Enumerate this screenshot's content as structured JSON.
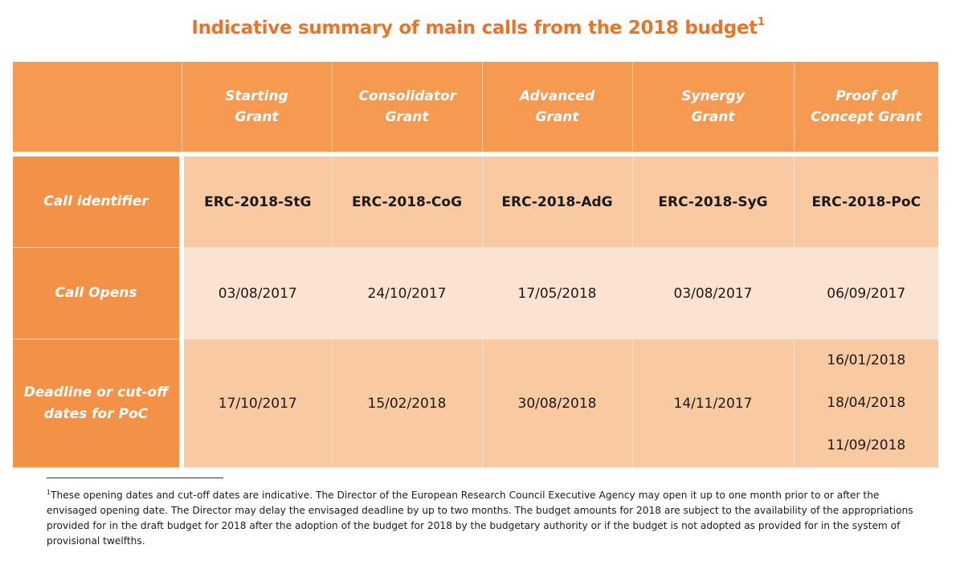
{
  "title": {
    "text": "Indicative summary of main calls from the 2018 budget",
    "sup": "1"
  },
  "table": {
    "corner": "",
    "columns": [
      "Starting Grant",
      "Consolidator Grant",
      "Advanced Grant",
      "Synergy Grant",
      "Proof of Concept Grant"
    ],
    "rows": [
      {
        "label": "Call identifier",
        "cells": [
          "ERC-2018-StG",
          "ERC-2018-CoG",
          "ERC-2018-AdG",
          "ERC-2018-SyG",
          "ERC-2018-PoC"
        ]
      },
      {
        "label": "Call Opens",
        "cells": [
          "03/08/2017",
          "24/10/2017",
          "17/05/2018",
          "03/08/2017",
          "06/09/2017"
        ]
      },
      {
        "label": "Deadline or cut-off dates for PoC",
        "cells": [
          "17/10/2017",
          "15/02/2018",
          "30/08/2018",
          "14/11/2017"
        ],
        "poc_dates": [
          "16/01/2018",
          "18/04/2018",
          "11/09/2018"
        ]
      }
    ]
  },
  "footnote": {
    "marker": "1",
    "text": "These opening dates and cut-off dates are indicative. The Director of the European Research Council Executive Agency may open it up to one month prior to or after the envisaged opening date. The Director may delay the envisaged deadline by up to two months. The budget amounts for 2018 are subject to the availability of the appropriations provided for in the draft budget for 2018 after the adoption of the budget for 2018 by the budgetary authority or if the budget is not adopted as provided for in the system of provisional twelfths."
  },
  "colors": {
    "accent": "#E8742A",
    "header": "#F59A50",
    "row_label": "#F39247",
    "cell_dark": "#F9C9A2",
    "cell_light": "#FCE3D1"
  }
}
